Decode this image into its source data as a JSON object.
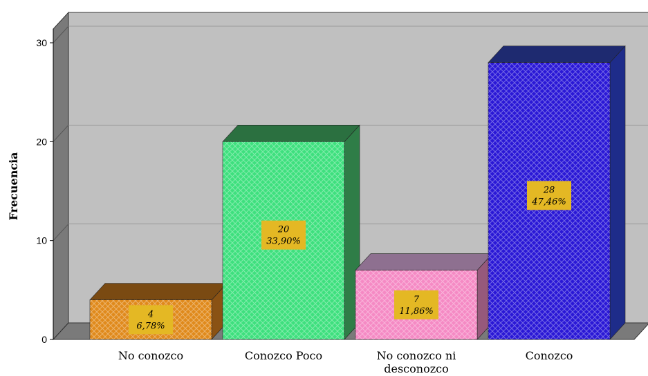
{
  "chart_data": {
    "type": "bar",
    "categories": [
      "No conozco",
      "Conozco Poco",
      "No conozco ni desconozco",
      "Conozco"
    ],
    "category_lines": [
      [
        "No conozco"
      ],
      [
        "Conozco Poco"
      ],
      [
        "No conozco ni",
        "desconozco"
      ],
      [
        "Conozco"
      ]
    ],
    "values": [
      4,
      20,
      7,
      28
    ],
    "percent_labels": [
      "6,78%",
      "33,90%",
      "11,86%",
      "47,46%"
    ],
    "ylabel": "Frecuencia",
    "xlabel": "",
    "ylim": [
      0,
      30
    ],
    "yticks": [
      0,
      10,
      20,
      30
    ],
    "grid": true,
    "bar_colors": [
      "#e08a1c",
      "#3ee07e",
      "#f58ac4",
      "#2a18d6"
    ],
    "bar_side_colors": [
      "#8a5214",
      "#2f7d47",
      "#96597b",
      "#1e2c8a"
    ],
    "bar_top_colors": [
      "#7a4a12",
      "#2b7040",
      "#8e7090",
      "#1e2a70"
    ],
    "label_box_color": "#e4b824",
    "plot_background": "#c0c0c0",
    "wall_color": "#7a7a7a"
  }
}
